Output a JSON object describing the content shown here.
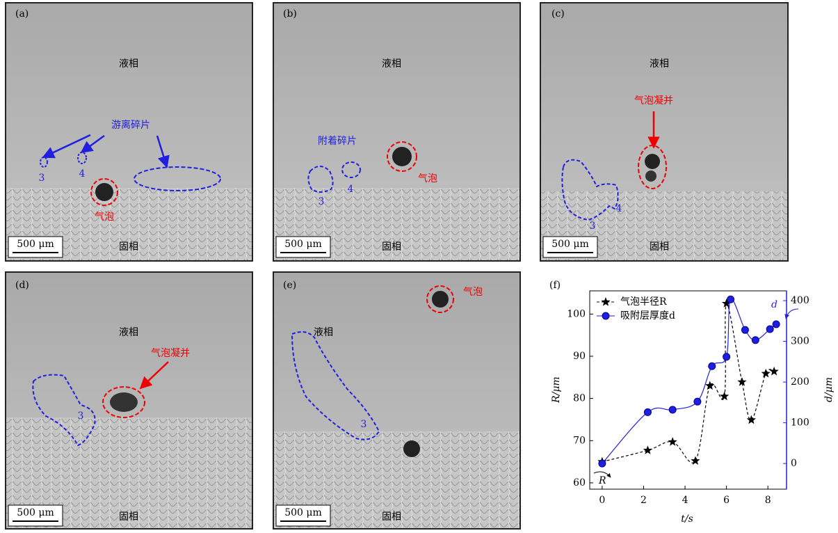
{
  "panels": [
    {
      "label": "(a)",
      "liquid": "液相",
      "solid": "固相",
      "scale": "500 μm",
      "annotations": [
        "游离碎片",
        "气泡",
        "3",
        "4"
      ]
    },
    {
      "label": "(b)",
      "liquid": "液相",
      "solid": "固相",
      "scale": "500 μm",
      "annotations": [
        "附着碎片",
        "气泡",
        "3",
        "4"
      ]
    },
    {
      "label": "(c)",
      "liquid": "液相",
      "solid": "固相",
      "scale": "500 μm",
      "annotations": [
        "气泡凝并",
        "3",
        "4"
      ]
    },
    {
      "label": "(d)",
      "liquid": "液相",
      "solid": "固相",
      "scale": "500 μm",
      "annotations": [
        "气泡凝并",
        "3"
      ]
    },
    {
      "label": "(e)",
      "liquid": "液相",
      "solid": "固相",
      "scale": "500 μm",
      "annotations": [
        "气泡",
        "3"
      ]
    }
  ],
  "chart_data": {
    "type": "line",
    "panel_label": "(f)",
    "x_label": "t/s",
    "y_label": "R/μm",
    "y2_label": "d/μm",
    "xlim": [
      -0.6,
      8.9
    ],
    "xticks": [
      0,
      2,
      4,
      6,
      8
    ],
    "ylim": [
      58.5,
      105.5
    ],
    "yticks": [
      60,
      70,
      80,
      90,
      100
    ],
    "y2lim": [
      -63,
      424
    ],
    "y2ticks": [
      0,
      100,
      200,
      300,
      400
    ],
    "legend": "upper left",
    "annotations": [
      "R",
      "d"
    ],
    "series": [
      {
        "name": "气泡半径R",
        "color": "#000000",
        "marker": "star",
        "line_style": "dashed",
        "x": [
          0,
          2.2,
          3.4,
          4.5,
          5.2,
          5.9,
          6.0,
          6.75,
          7.2,
          7.9,
          8.3
        ],
        "values": [
          65,
          67.7,
          69.7,
          65.2,
          83,
          80.5,
          102.5,
          83.9,
          74.9,
          85.9,
          86.4
        ]
      },
      {
        "name": "吸附层厚度d",
        "color": "#1f1fe0",
        "marker": "circle",
        "line_style": "solid",
        "axis": "y2",
        "x": [
          0,
          2.2,
          3.4,
          4.6,
          5.3,
          6.0,
          6.2,
          6.9,
          7.4,
          8.1,
          8.4
        ],
        "values": [
          0,
          126,
          132,
          152,
          239,
          262,
          403,
          328,
          303,
          330,
          342
        ]
      }
    ]
  }
}
